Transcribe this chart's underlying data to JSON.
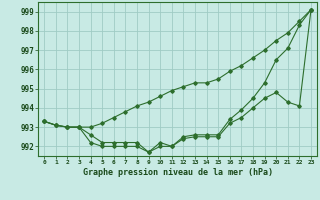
{
  "title": "Graphe pression niveau de la mer (hPa)",
  "background_color": "#c8eae4",
  "grid_color": "#a0ccc4",
  "line_color": "#2d6e2d",
  "x_hours": [
    0,
    1,
    2,
    3,
    4,
    5,
    6,
    7,
    8,
    9,
    10,
    11,
    12,
    13,
    14,
    15,
    16,
    17,
    18,
    19,
    20,
    21,
    22,
    23
  ],
  "s1": [
    993.3,
    993.1,
    993.0,
    993.0,
    992.6,
    992.2,
    992.2,
    992.2,
    992.2,
    991.7,
    992.2,
    992.0,
    992.5,
    992.6,
    992.6,
    992.6,
    993.4,
    993.9,
    994.5,
    995.3,
    996.5,
    997.1,
    998.3,
    999.1
  ],
  "s2": [
    993.3,
    993.1,
    993.0,
    993.0,
    992.2,
    992.0,
    992.0,
    992.0,
    992.0,
    991.7,
    992.0,
    992.0,
    992.4,
    992.5,
    992.5,
    992.5,
    993.2,
    993.5,
    994.0,
    994.5,
    994.8,
    994.3,
    994.1,
    999.1
  ],
  "s3": [
    993.3,
    993.1,
    993.0,
    993.0,
    993.0,
    993.2,
    993.5,
    993.8,
    994.1,
    994.3,
    994.6,
    994.9,
    995.1,
    995.3,
    995.3,
    995.5,
    995.9,
    996.2,
    996.6,
    997.0,
    997.5,
    997.9,
    998.5,
    999.1
  ],
  "ylim": [
    991.5,
    999.5
  ],
  "yticks": [
    992,
    993,
    994,
    995,
    996,
    997,
    998,
    999
  ],
  "xlim": [
    -0.5,
    23.5
  ]
}
